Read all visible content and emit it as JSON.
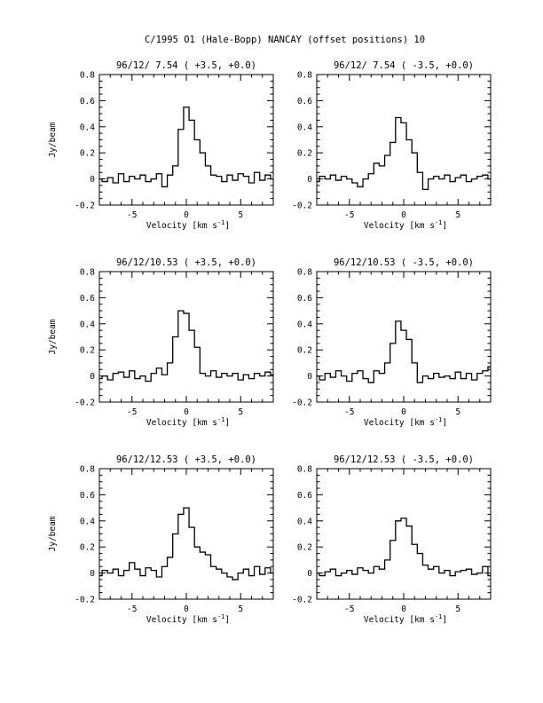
{
  "figure_title": "C/1995 O1 (Hale-Bopp)   NANCAY     (offset positions)   10",
  "chart_data": [
    {
      "type": "line",
      "title": "96/12/ 7.54  ( +3.5, +0.0)",
      "xlabel": "Velocity [km s",
      "xlabel_sup": "-1",
      "xlabel_close": "]",
      "ylabel": "Jy/beam",
      "xlim": [
        -8,
        8
      ],
      "ylim": [
        -0.2,
        0.8
      ],
      "xticks": [
        -5,
        0,
        5
      ],
      "yticks": [
        -0.2,
        0,
        0.2,
        0.4,
        0.6,
        0.8
      ],
      "x": [
        -8,
        -7.5,
        -7,
        -6.5,
        -6,
        -5.5,
        -5,
        -4.5,
        -4,
        -3.5,
        -3,
        -2.5,
        -2,
        -1.5,
        -1,
        -0.5,
        0,
        0.5,
        1,
        1.5,
        2,
        2.5,
        3,
        3.5,
        4,
        4.5,
        5,
        5.5,
        6,
        6.5,
        7,
        7.5,
        8
      ],
      "y": [
        0.0,
        -0.02,
        0.01,
        -0.03,
        0.04,
        -0.02,
        0.02,
        0.0,
        0.03,
        -0.02,
        0.0,
        0.04,
        -0.06,
        0.03,
        0.1,
        0.38,
        0.55,
        0.45,
        0.3,
        0.2,
        0.1,
        0.03,
        0.02,
        -0.02,
        0.03,
        -0.01,
        0.04,
        0.02,
        -0.03,
        0.05,
        -0.01,
        0.03,
        0.0
      ]
    },
    {
      "type": "line",
      "title": "96/12/ 7.54  ( -3.5, +0.0)",
      "xlabel": "Velocity [km s",
      "xlabel_sup": "-1",
      "xlabel_close": "]",
      "ylabel": "",
      "xlim": [
        -8,
        8
      ],
      "ylim": [
        -0.2,
        0.8
      ],
      "xticks": [
        -5,
        0,
        5
      ],
      "yticks": [
        -0.2,
        0,
        0.2,
        0.4,
        0.6,
        0.8
      ],
      "x": [
        -8,
        -7.5,
        -7,
        -6.5,
        -6,
        -5.5,
        -5,
        -4.5,
        -4,
        -3.5,
        -3,
        -2.5,
        -2,
        -1.5,
        -1,
        -0.5,
        0,
        0.5,
        1,
        1.5,
        2,
        2.5,
        3,
        3.5,
        4,
        4.5,
        5,
        5.5,
        6,
        6.5,
        7,
        7.5,
        8
      ],
      "y": [
        -0.02,
        0.02,
        0.0,
        0.03,
        -0.01,
        0.02,
        0.0,
        -0.03,
        -0.06,
        0.0,
        0.04,
        0.12,
        0.1,
        0.18,
        0.28,
        0.47,
        0.43,
        0.3,
        0.2,
        0.05,
        -0.08,
        0.0,
        0.02,
        0.0,
        0.03,
        -0.02,
        0.01,
        0.03,
        -0.02,
        0.0,
        0.02,
        0.03,
        0.0
      ]
    },
    {
      "type": "line",
      "title": "96/12/10.53  ( +3.5, +0.0)",
      "xlabel": "Velocity [km s",
      "xlabel_sup": "-1",
      "xlabel_close": "]",
      "ylabel": "Jy/beam",
      "xlim": [
        -8,
        8
      ],
      "ylim": [
        -0.2,
        0.8
      ],
      "xticks": [
        -5,
        0,
        5
      ],
      "yticks": [
        -0.2,
        0,
        0.2,
        0.4,
        0.6,
        0.8
      ],
      "x": [
        -8,
        -7.5,
        -7,
        -6.5,
        -6,
        -5.5,
        -5,
        -4.5,
        -4,
        -3.5,
        -3,
        -2.5,
        -2,
        -1.5,
        -1,
        -0.5,
        0,
        0.5,
        1,
        1.5,
        2,
        2.5,
        3,
        3.5,
        4,
        4.5,
        5,
        5.5,
        6,
        6.5,
        7,
        7.5,
        8
      ],
      "y": [
        -0.02,
        0.0,
        -0.03,
        0.02,
        0.03,
        -0.01,
        0.04,
        -0.02,
        0.0,
        -0.04,
        0.02,
        0.06,
        0.01,
        0.1,
        0.3,
        0.5,
        0.48,
        0.35,
        0.22,
        0.02,
        0.0,
        0.04,
        -0.01,
        0.02,
        0.0,
        0.02,
        -0.03,
        0.01,
        -0.02,
        0.02,
        0.0,
        0.03,
        0.01
      ]
    },
    {
      "type": "line",
      "title": "96/12/10.53  ( -3.5, +0.0)",
      "xlabel": "Velocity [km s",
      "xlabel_sup": "-1",
      "xlabel_close": "]",
      "ylabel": "",
      "xlim": [
        -8,
        8
      ],
      "ylim": [
        -0.2,
        0.8
      ],
      "xticks": [
        -5,
        0,
        5
      ],
      "yticks": [
        -0.2,
        0,
        0.2,
        0.4,
        0.6,
        0.8
      ],
      "x": [
        -8,
        -7.5,
        -7,
        -6.5,
        -6,
        -5.5,
        -5,
        -4.5,
        -4,
        -3.5,
        -3,
        -2.5,
        -2,
        -1.5,
        -1,
        -0.5,
        0,
        0.5,
        1,
        1.5,
        2,
        2.5,
        3,
        3.5,
        4,
        4.5,
        5,
        5.5,
        6,
        6.5,
        7,
        7.5,
        8
      ],
      "y": [
        0.0,
        -0.03,
        0.02,
        -0.01,
        0.04,
        0.0,
        -0.04,
        0.02,
        0.04,
        -0.02,
        -0.05,
        0.04,
        0.02,
        0.1,
        0.25,
        0.42,
        0.35,
        0.28,
        0.1,
        -0.05,
        0.0,
        -0.02,
        0.02,
        -0.01,
        0.0,
        -0.02,
        0.03,
        -0.02,
        0.02,
        -0.03,
        0.02,
        0.04,
        0.07
      ]
    },
    {
      "type": "line",
      "title": "96/12/12.53  ( +3.5, +0.0)",
      "xlabel": "Velocity [km s",
      "xlabel_sup": "-1",
      "xlabel_close": "]",
      "ylabel": "Jy/beam",
      "xlim": [
        -8,
        8
      ],
      "ylim": [
        -0.2,
        0.8
      ],
      "xticks": [
        -5,
        0,
        5
      ],
      "yticks": [
        -0.2,
        0,
        0.2,
        0.4,
        0.6,
        0.8
      ],
      "x": [
        -8,
        -7.5,
        -7,
        -6.5,
        -6,
        -5.5,
        -5,
        -4.5,
        -4,
        -3.5,
        -3,
        -2.5,
        -2,
        -1.5,
        -1,
        -0.5,
        0,
        0.5,
        1,
        1.5,
        2,
        2.5,
        3,
        3.5,
        4,
        4.5,
        5,
        5.5,
        6,
        6.5,
        7,
        7.5,
        8
      ],
      "y": [
        -0.02,
        0.02,
        0.0,
        0.03,
        -0.02,
        0.02,
        0.08,
        0.03,
        -0.02,
        0.04,
        0.02,
        -0.03,
        0.05,
        0.12,
        0.3,
        0.45,
        0.5,
        0.35,
        0.2,
        0.16,
        0.14,
        0.05,
        0.03,
        0.0,
        -0.03,
        -0.05,
        0.0,
        0.03,
        -0.02,
        0.05,
        -0.01,
        0.04,
        0.0
      ]
    },
    {
      "type": "line",
      "title": "96/12/12.53  ( -3.5, +0.0)",
      "xlabel": "Velocity [km s",
      "xlabel_sup": "-1",
      "xlabel_close": "]",
      "ylabel": "",
      "xlim": [
        -8,
        8
      ],
      "ylim": [
        -0.2,
        0.8
      ],
      "xticks": [
        -5,
        0,
        5
      ],
      "yticks": [
        -0.2,
        0,
        0.2,
        0.4,
        0.6,
        0.8
      ],
      "x": [
        -8,
        -7.5,
        -7,
        -6.5,
        -6,
        -5.5,
        -5,
        -4.5,
        -4,
        -3.5,
        -3,
        -2.5,
        -2,
        -1.5,
        -1,
        -0.5,
        0,
        0.5,
        1,
        1.5,
        2,
        2.5,
        3,
        3.5,
        4,
        4.5,
        5,
        5.5,
        6,
        6.5,
        7,
        7.5,
        8
      ],
      "y": [
        0.0,
        -0.02,
        0.01,
        0.03,
        -0.02,
        0.0,
        0.02,
        -0.01,
        0.04,
        0.02,
        0.0,
        0.05,
        0.03,
        0.1,
        0.25,
        0.4,
        0.42,
        0.36,
        0.22,
        0.15,
        0.06,
        0.03,
        0.05,
        0.0,
        0.02,
        -0.02,
        0.01,
        0.02,
        0.03,
        -0.01,
        0.0,
        0.05,
        -0.02
      ]
    }
  ]
}
